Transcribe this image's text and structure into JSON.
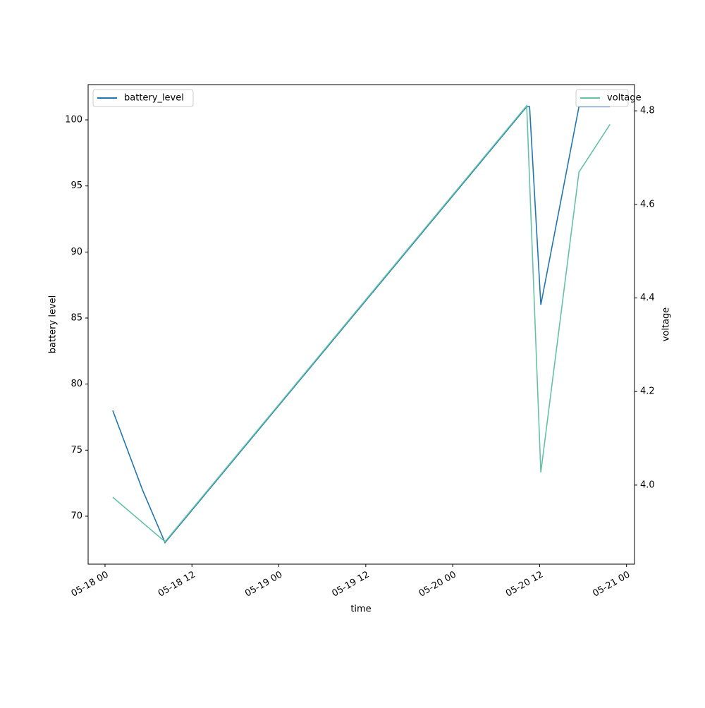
{
  "chart_data": {
    "type": "line",
    "x_label": "time",
    "y_label": "battery level",
    "y2_label": "voltage",
    "xlim": [
      "05-17 21:40",
      "05-21 01:06"
    ],
    "xticks": [
      "05-18 00",
      "05-18 12",
      "05-19 00",
      "05-19 12",
      "05-20 00",
      "05-20 12",
      "05-21 00"
    ],
    "ylim": [
      66.37,
      102.67
    ],
    "yticks": [
      70,
      75,
      80,
      85,
      90,
      95,
      100
    ],
    "y2lim": [
      3.831,
      4.856
    ],
    "y2ticks": [
      4.0,
      4.2,
      4.4,
      4.6,
      4.8
    ],
    "series": [
      {
        "name": "battery_level",
        "color": "#1f77b4",
        "legend": "upper left",
        "x": [
          "05-18 01:04",
          "05-18 05:10",
          "05-18 08:17",
          "05-20 10:13",
          "05-20 10:37",
          "05-20 12:10",
          "05-20 17:26",
          "05-20 21:43"
        ],
        "values": [
          78,
          72,
          68,
          101,
          101,
          86,
          101,
          101
        ]
      },
      {
        "name": "voltage",
        "color": "#66c2a5",
        "axis": "y2",
        "legend": "upper right",
        "x": [
          "05-18 01:04",
          "05-18 08:17",
          "05-20 10:13",
          "05-20 12:10",
          "05-20 17:26",
          "05-20 21:43"
        ],
        "values": [
          3.974,
          3.879,
          4.811,
          4.027,
          4.669,
          4.771
        ]
      }
    ]
  }
}
